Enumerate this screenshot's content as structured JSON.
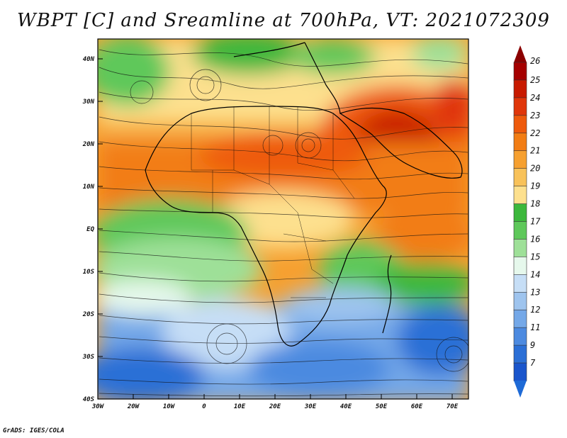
{
  "title": "WBPT [C] and Sreamline at 700hPa, VT: 2021072309",
  "credit": "GrADS: IGES/COLA",
  "map": {
    "lat_labels": [
      "40N",
      "30N",
      "20N",
      "10N",
      "EQ",
      "10S",
      "20S",
      "30S",
      "40S"
    ],
    "lon_labels": [
      "30W",
      "20W",
      "10W",
      "0",
      "10E",
      "20E",
      "30E",
      "40E",
      "50E",
      "60E",
      "70E"
    ],
    "lat_range": [
      -40,
      44
    ],
    "lon_range": [
      -30,
      75
    ]
  },
  "colorbar": {
    "levels": [
      "26",
      "25",
      "24",
      "23",
      "22",
      "21",
      "20",
      "19",
      "18",
      "17",
      "16",
      "15",
      "14",
      "13",
      "12",
      "11",
      "9",
      "7"
    ],
    "colors": [
      "#a50000",
      "#c81a00",
      "#e0360a",
      "#ee5a0c",
      "#f27d14",
      "#f6a030",
      "#f8c25a",
      "#fde08e",
      "#3cb83c",
      "#5ec85a",
      "#9ee098",
      "#e6f8ec",
      "#c6def6",
      "#9ec4ee",
      "#74a8e8",
      "#4c8ae0",
      "#2b6fd6",
      "#1a55cc"
    ]
  },
  "colors": {
    "accent_top": "#8b0000",
    "accent_bottom": "#1e6ad6"
  }
}
